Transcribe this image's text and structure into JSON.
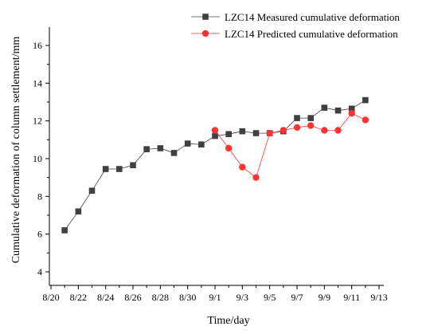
{
  "chart_data": {
    "type": "line",
    "xlabel": "Time/day",
    "ylabel": "Cumulative deformation of column settlement/mm",
    "x_ticks": [
      "8/20",
      "8/22",
      "8/24",
      "8/26",
      "8/28",
      "8/30",
      "9/1",
      "9/3",
      "9/5",
      "9/7",
      "9/9",
      "9/11",
      "9/13"
    ],
    "y_ticks": [
      "4",
      "6",
      "8",
      "10",
      "12",
      "14",
      "16"
    ],
    "ylim": [
      3.5,
      16.7
    ],
    "legend_position": "top-right",
    "grid": false,
    "series": [
      {
        "name": "LZC14 Measured cumulative deformation",
        "marker": "square",
        "color": "#404040",
        "points": [
          [
            "8/21",
            6.2
          ],
          [
            "8/22",
            7.2
          ],
          [
            "8/23",
            8.3
          ],
          [
            "8/24",
            9.45
          ],
          [
            "8/25",
            9.45
          ],
          [
            "8/26",
            9.65
          ],
          [
            "8/27",
            10.5
          ],
          [
            "8/28",
            10.55
          ],
          [
            "8/29",
            10.3
          ],
          [
            "8/30",
            10.8
          ],
          [
            "8/31",
            10.75
          ],
          [
            "9/1",
            11.2
          ],
          [
            "9/2",
            11.3
          ],
          [
            "9/3",
            11.45
          ],
          [
            "9/4",
            11.35
          ],
          [
            "9/5",
            11.35
          ],
          [
            "9/6",
            11.45
          ],
          [
            "9/7",
            12.15
          ],
          [
            "9/8",
            12.15
          ],
          [
            "9/9",
            12.7
          ],
          [
            "9/10",
            12.55
          ],
          [
            "9/11",
            12.65
          ],
          [
            "9/12",
            13.1
          ]
        ]
      },
      {
        "name": "LZC14 Predicted cumulative deformation",
        "marker": "circle",
        "color": "#ff3333",
        "points": [
          [
            "9/1",
            11.5
          ],
          [
            "9/2",
            10.55
          ],
          [
            "9/3",
            9.55
          ],
          [
            "9/4",
            9.0
          ],
          [
            "9/5",
            11.35
          ],
          [
            "9/6",
            11.5
          ],
          [
            "9/7",
            11.65
          ],
          [
            "9/8",
            11.75
          ],
          [
            "9/9",
            11.5
          ],
          [
            "9/10",
            11.5
          ],
          [
            "9/11",
            12.4
          ],
          [
            "9/12",
            12.05
          ]
        ]
      }
    ]
  }
}
